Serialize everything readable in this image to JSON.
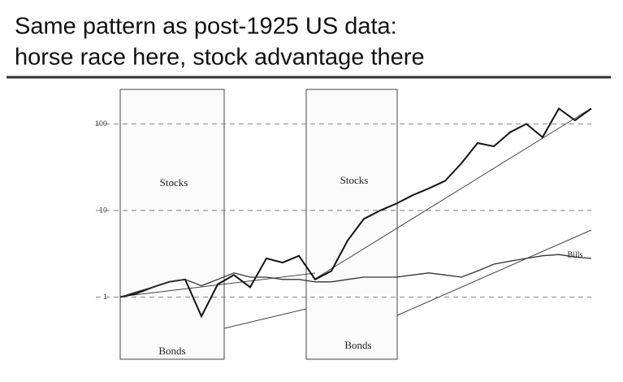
{
  "title": [
    "Same pattern as post-1925 US data:",
    "horse race here, stock advantage there"
  ],
  "chart_data": {
    "type": "line",
    "log_scale": true,
    "grid": true,
    "categories": [
      null,
      null,
      null,
      null,
      null,
      null,
      null,
      null,
      null,
      null,
      null,
      null,
      null,
      null,
      null,
      null,
      null,
      null,
      null,
      null,
      null,
      null,
      null,
      null,
      null,
      null,
      null,
      null,
      null,
      null
    ],
    "ylim": [
      0.2,
      250
    ],
    "yticks": [
      1,
      10,
      100
    ],
    "series": [
      {
        "name": "Stocks",
        "color": "#111111",
        "values": [
          1.0,
          1.1,
          1.3,
          1.5,
          1.6,
          0.6,
          1.4,
          1.8,
          1.3,
          2.8,
          2.5,
          3.0,
          1.6,
          2.0,
          4.5,
          8,
          10,
          12,
          15,
          18,
          22,
          35,
          60,
          55,
          80,
          100,
          70,
          150,
          110,
          150
        ]
      },
      {
        "name": "Bills",
        "color": "#333333",
        "values": [
          1.0,
          1.15,
          1.3,
          1.5,
          1.6,
          1.35,
          1.6,
          1.9,
          1.7,
          1.7,
          1.6,
          1.6,
          1.5,
          1.5,
          1.6,
          1.7,
          1.7,
          1.7,
          1.8,
          1.9,
          1.8,
          1.7,
          2.0,
          2.4,
          2.6,
          2.8,
          3.0,
          3.1,
          2.9,
          2.8
        ]
      }
    ],
    "annotations": [
      "Stocks",
      "Bonds",
      "Bonds"
    ]
  }
}
